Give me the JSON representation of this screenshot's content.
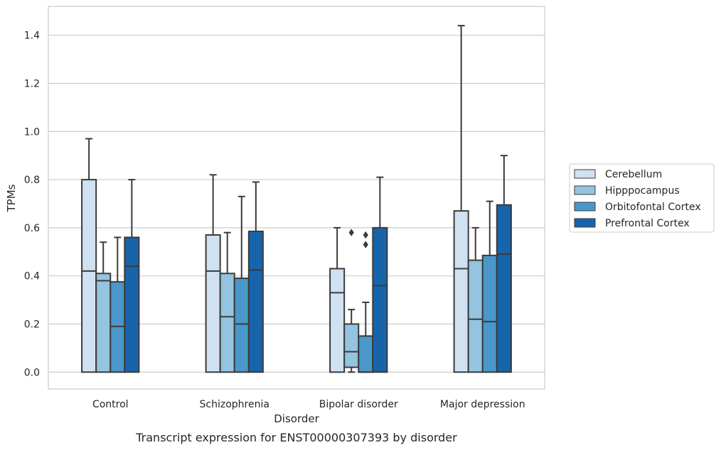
{
  "chart_data": {
    "type": "box",
    "caption": "Transcript expression for ENST00000307393 by disorder",
    "xlabel": "Disorder",
    "ylabel": "TPMs",
    "ylim": [
      -0.07,
      1.52
    ],
    "yticks": [
      0.0,
      0.2,
      0.4,
      0.6,
      0.8,
      1.0,
      1.2,
      1.4
    ],
    "ytick_labels": [
      "0.0",
      "0.2",
      "0.4",
      "0.6",
      "0.8",
      "1.0",
      "1.2",
      "1.4"
    ],
    "grid": "horizontal",
    "legend_position": "right-outside",
    "categories": [
      "Control",
      "Schizophrenia",
      "Bipolar disorder",
      "Major depression"
    ],
    "series": [
      {
        "name": "Cerebellum",
        "color": "#d0e1f2",
        "boxes": [
          {
            "whislo": 0.0,
            "q1": 0.0,
            "med": 0.42,
            "q3": 0.8,
            "whishi": 0.97,
            "fliers": []
          },
          {
            "whislo": 0.0,
            "q1": 0.0,
            "med": 0.42,
            "q3": 0.57,
            "whishi": 0.82,
            "fliers": []
          },
          {
            "whislo": 0.0,
            "q1": 0.0,
            "med": 0.33,
            "q3": 0.43,
            "whishi": 0.6,
            "fliers": []
          },
          {
            "whislo": 0.0,
            "q1": 0.0,
            "med": 0.43,
            "q3": 0.67,
            "whishi": 1.44,
            "fliers": []
          }
        ]
      },
      {
        "name": "Hipppocampus",
        "color": "#94c4df",
        "boxes": [
          {
            "whislo": 0.0,
            "q1": 0.0,
            "med": 0.38,
            "q3": 0.41,
            "whishi": 0.54,
            "fliers": []
          },
          {
            "whislo": 0.0,
            "q1": 0.0,
            "med": 0.23,
            "q3": 0.41,
            "whishi": 0.58,
            "fliers": []
          },
          {
            "whislo": 0.0,
            "q1": 0.02,
            "med": 0.085,
            "q3": 0.2,
            "whishi": 0.26,
            "fliers": [
              0.58
            ]
          },
          {
            "whislo": 0.0,
            "q1": 0.0,
            "med": 0.22,
            "q3": 0.465,
            "whishi": 0.6,
            "fliers": []
          }
        ]
      },
      {
        "name": "Orbitofontal Cortex",
        "color": "#4a98c9",
        "boxes": [
          {
            "whislo": 0.0,
            "q1": 0.0,
            "med": 0.19,
            "q3": 0.375,
            "whishi": 0.56,
            "fliers": []
          },
          {
            "whislo": 0.0,
            "q1": 0.0,
            "med": 0.2,
            "q3": 0.39,
            "whishi": 0.73,
            "fliers": []
          },
          {
            "whislo": 0.0,
            "q1": 0.0,
            "med": 0.0,
            "q3": 0.15,
            "whishi": 0.29,
            "fliers": [
              0.53,
              0.57
            ]
          },
          {
            "whislo": 0.0,
            "q1": 0.0,
            "med": 0.21,
            "q3": 0.485,
            "whishi": 0.71,
            "fliers": []
          }
        ]
      },
      {
        "name": "Prefrontal Cortex",
        "color": "#1764ab",
        "boxes": [
          {
            "whislo": 0.0,
            "q1": 0.0,
            "med": 0.44,
            "q3": 0.56,
            "whishi": 0.8,
            "fliers": []
          },
          {
            "whislo": 0.0,
            "q1": 0.0,
            "med": 0.425,
            "q3": 0.585,
            "whishi": 0.79,
            "fliers": []
          },
          {
            "whislo": 0.0,
            "q1": 0.0,
            "med": 0.36,
            "q3": 0.6,
            "whishi": 0.81,
            "fliers": []
          },
          {
            "whislo": 0.0,
            "q1": 0.0,
            "med": 0.49,
            "q3": 0.695,
            "whishi": 0.9,
            "fliers": []
          }
        ]
      }
    ]
  }
}
